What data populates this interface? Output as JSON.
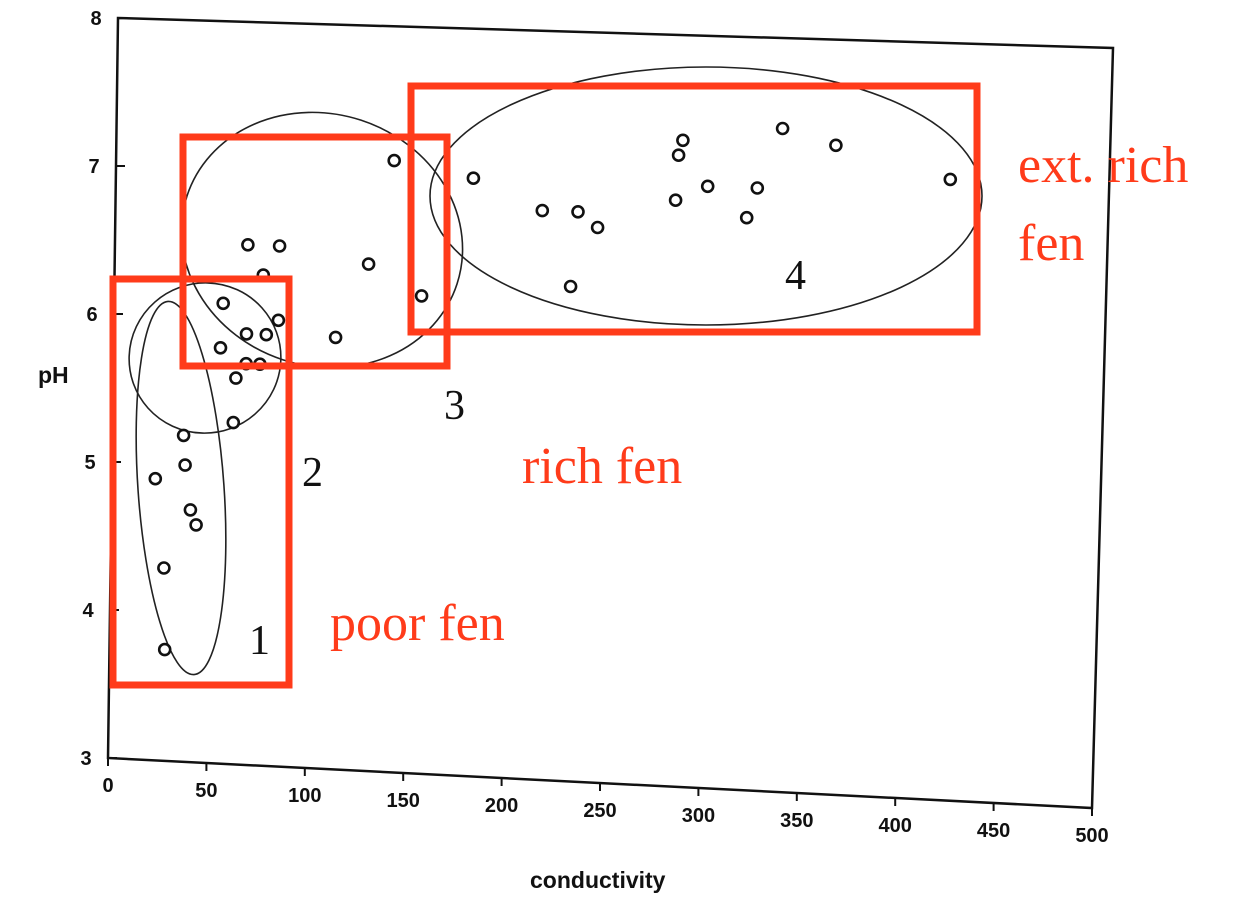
{
  "chart_data": {
    "type": "scatter",
    "title": "",
    "xlabel": "conductivity",
    "ylabel": "pH",
    "xlim": [
      0,
      500
    ],
    "ylim": [
      3,
      8
    ],
    "xticks": [
      "0",
      "50",
      "100",
      "150",
      "200",
      "250",
      "300",
      "350",
      "400",
      "450",
      "500"
    ],
    "yticks": [
      "3",
      "4",
      "5",
      "6",
      "7",
      "8"
    ],
    "grid": false,
    "points": [
      {
        "x": 28,
        "y": 3.75
      },
      {
        "x": 27,
        "y": 4.3
      },
      {
        "x": 43,
        "y": 4.6
      },
      {
        "x": 40,
        "y": 4.7
      },
      {
        "x": 22,
        "y": 4.9
      },
      {
        "x": 37,
        "y": 5.0
      },
      {
        "x": 36,
        "y": 5.2
      },
      {
        "x": 61,
        "y": 5.3
      },
      {
        "x": 62,
        "y": 5.6
      },
      {
        "x": 54,
        "y": 5.8
      },
      {
        "x": 67,
        "y": 5.7
      },
      {
        "x": 74,
        "y": 5.7
      },
      {
        "x": 67,
        "y": 5.9
      },
      {
        "x": 77,
        "y": 5.9
      },
      {
        "x": 55,
        "y": 6.1
      },
      {
        "x": 83,
        "y": 6.0
      },
      {
        "x": 112,
        "y": 5.9
      },
      {
        "x": 75,
        "y": 6.3
      },
      {
        "x": 67,
        "y": 6.5
      },
      {
        "x": 83,
        "y": 6.5
      },
      {
        "x": 128,
        "y": 6.4
      },
      {
        "x": 155,
        "y": 6.2
      },
      {
        "x": 140,
        "y": 7.1
      },
      {
        "x": 180,
        "y": 7.0
      },
      {
        "x": 215,
        "y": 6.8
      },
      {
        "x": 233,
        "y": 6.8
      },
      {
        "x": 243,
        "y": 6.7
      },
      {
        "x": 230,
        "y": 6.3
      },
      {
        "x": 282,
        "y": 6.9
      },
      {
        "x": 298,
        "y": 7.0
      },
      {
        "x": 283,
        "y": 7.2
      },
      {
        "x": 285,
        "y": 7.3
      },
      {
        "x": 318,
        "y": 6.8
      },
      {
        "x": 323,
        "y": 7.0
      },
      {
        "x": 335,
        "y": 7.4
      },
      {
        "x": 362,
        "y": 7.3
      },
      {
        "x": 420,
        "y": 7.1
      }
    ],
    "cluster_labels": [
      "1",
      "2",
      "3",
      "4"
    ],
    "annotations": [
      "poor fen",
      "rich fen",
      "ext. rich fen"
    ],
    "colors": {
      "annotation": "#ff3b1a",
      "data": "#111111"
    }
  }
}
